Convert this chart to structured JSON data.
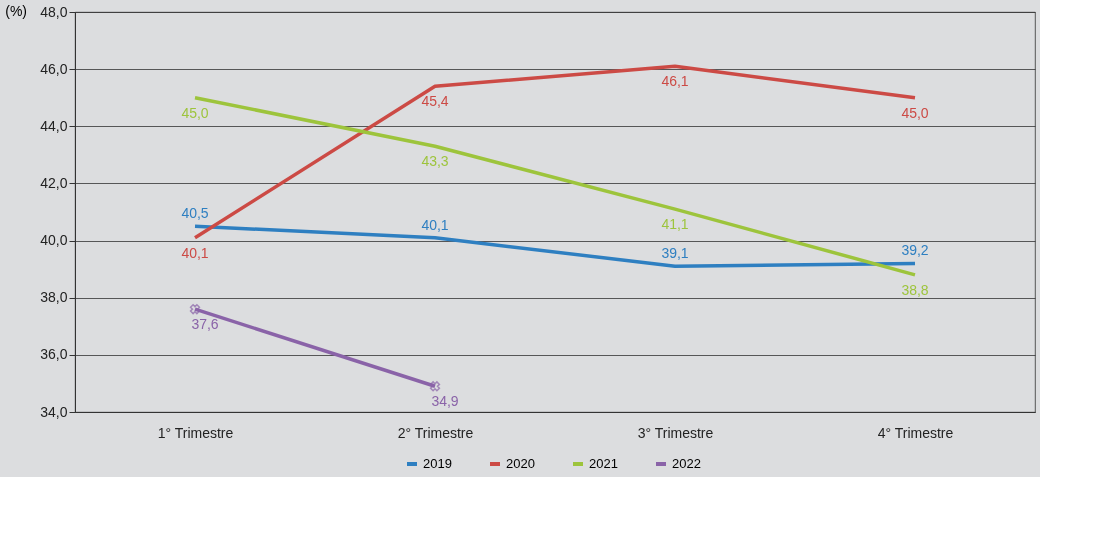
{
  "chart_data": {
    "type": "line",
    "ylabel": "(%)",
    "categories": [
      "1° Trimestre",
      "2° Trimestre",
      "3° Trimestre",
      "4° Trimestre"
    ],
    "series": [
      {
        "name": "2019",
        "color": "#2e7fc1",
        "values": [
          40.5,
          40.1,
          39.1,
          39.2
        ],
        "value_labels": [
          "40,5",
          "40,1",
          "39,1",
          "39,2"
        ]
      },
      {
        "name": "2020",
        "color": "#cc4a45",
        "values": [
          40.1,
          45.4,
          46.1,
          45.0
        ],
        "value_labels": [
          "40,1",
          "45,4",
          "46,1",
          "45,0"
        ]
      },
      {
        "name": "2021",
        "color": "#9dc43c",
        "values": [
          45.0,
          43.3,
          41.1,
          38.8
        ],
        "value_labels": [
          "45,0",
          "43,3",
          "41,1",
          "38,8"
        ]
      },
      {
        "name": "2022",
        "color": "#8a63a8",
        "values": [
          37.6,
          34.9,
          null,
          null
        ],
        "value_labels": [
          "37,6",
          "34,9",
          null,
          null
        ],
        "marker": "cross"
      }
    ],
    "ylim": [
      34,
      48
    ],
    "yticks": [
      {
        "value": 34,
        "label": "34,0"
      },
      {
        "value": 36,
        "label": "36,0"
      },
      {
        "value": 38,
        "label": "38,0"
      },
      {
        "value": 40,
        "label": "40,0"
      },
      {
        "value": 42,
        "label": "42,0"
      },
      {
        "value": 44,
        "label": "44,0"
      },
      {
        "value": 46,
        "label": "46,0"
      },
      {
        "value": 48,
        "label": "48,0"
      }
    ],
    "grid": "y",
    "legend": "bottom",
    "line_style": "solid"
  }
}
